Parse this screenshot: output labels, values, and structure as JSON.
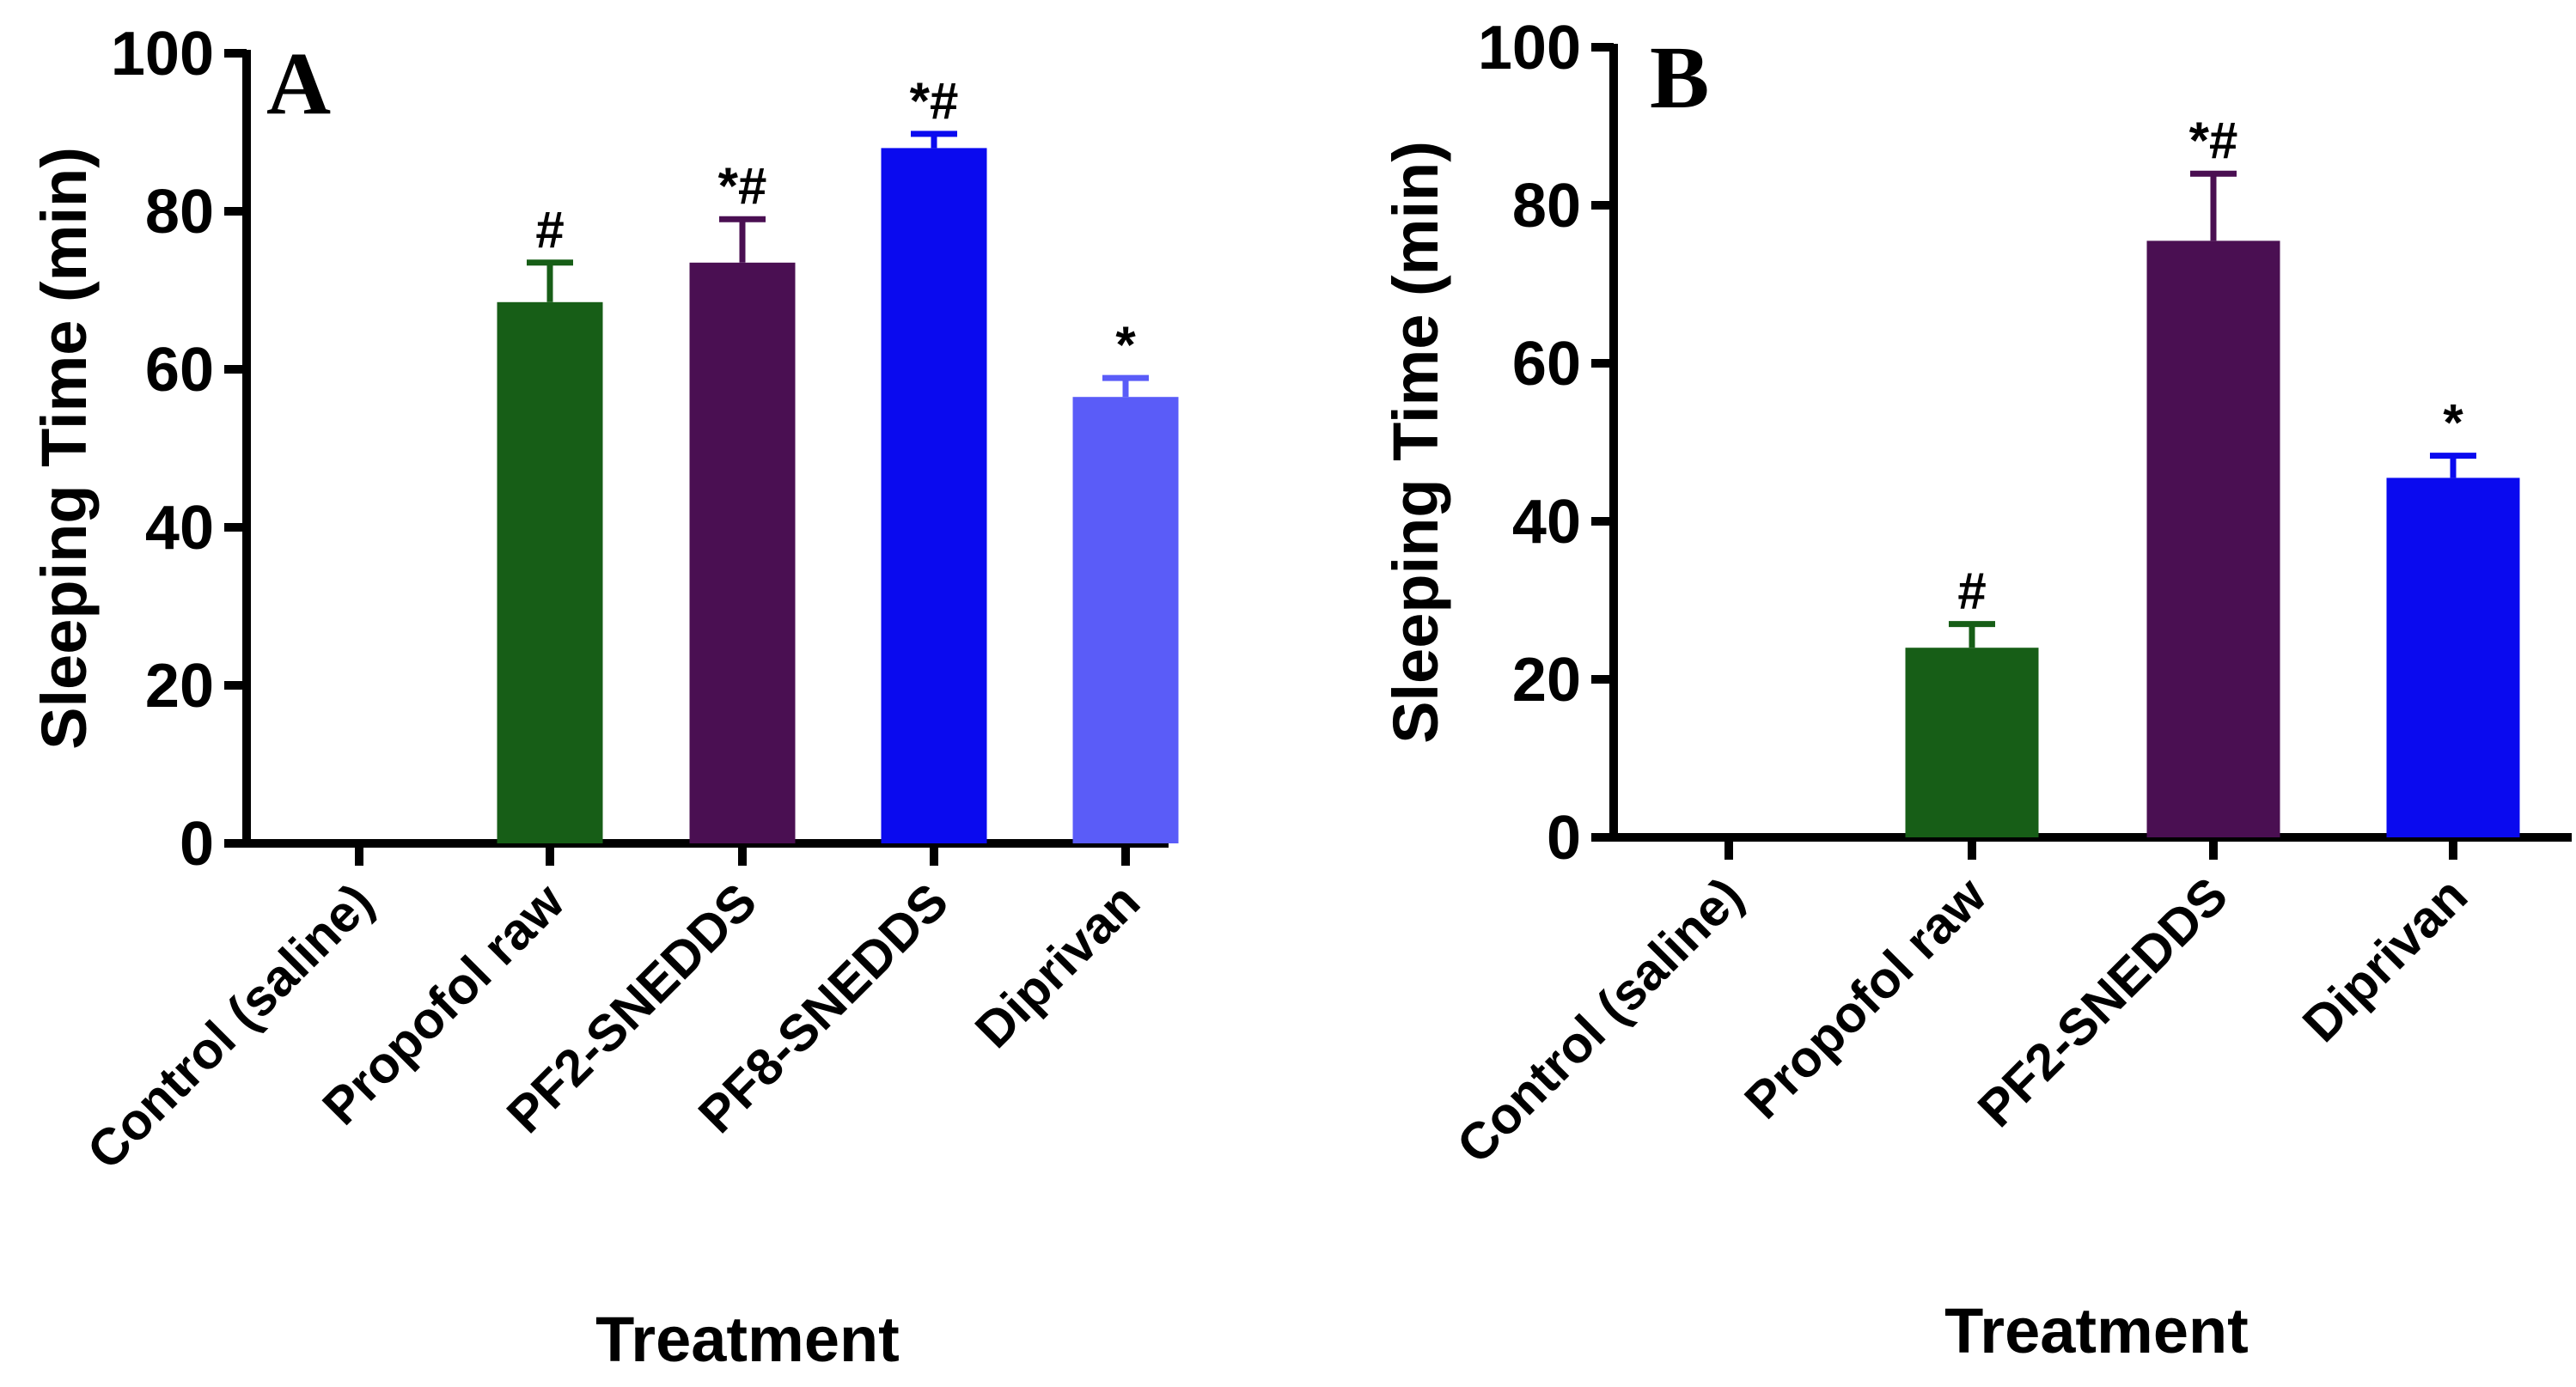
{
  "chart_data": [
    {
      "type": "bar",
      "panel": "A",
      "title": "",
      "xlabel": "Treatment",
      "ylabel": "Sleeping Time (min)",
      "ylim": [
        0,
        100
      ],
      "yticks": [
        "0",
        "20",
        "40",
        "60",
        "80",
        "100"
      ],
      "categories": [
        "Control (saline)",
        "Propofol raw",
        "PF2-SNEDDS",
        "PF8-SNEDDS",
        "Diprivan"
      ],
      "values": [
        0,
        68.5,
        73.5,
        88,
        56.5
      ],
      "errors": [
        0,
        5,
        5.5,
        1.8,
        2.4
      ],
      "annotations": [
        "",
        "#",
        "*#",
        "*#",
        "*"
      ],
      "colors": [
        "#1a5c1a",
        "#175e17",
        "#4a0f52",
        "#0a0aef",
        "#5a5cf8"
      ]
    },
    {
      "type": "bar",
      "panel": "B",
      "title": "",
      "xlabel": "Treatment",
      "ylabel": "Sleeping Time (min)",
      "ylim": [
        0,
        100
      ],
      "yticks": [
        "0",
        "20",
        "40",
        "60",
        "80",
        "100"
      ],
      "categories": [
        "Control (saline)",
        "Propofol raw",
        "PF2-SNEDDS",
        "Diprivan"
      ],
      "values": [
        0,
        24,
        75.5,
        45.5
      ],
      "errors": [
        0,
        3,
        8.5,
        2.8
      ],
      "annotations": [
        "",
        "#",
        "*#",
        "*"
      ],
      "colors": [
        "#175e17",
        "#175e17",
        "#4a0f52",
        "#0a0aef"
      ]
    }
  ]
}
